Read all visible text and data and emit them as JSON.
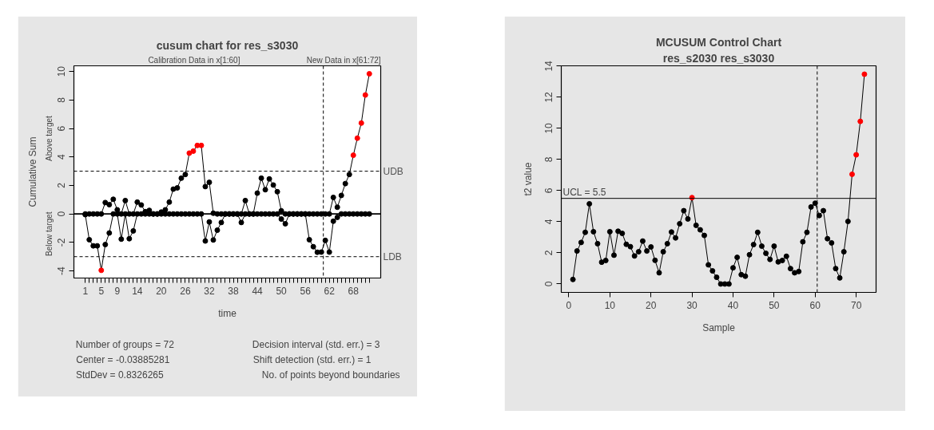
{
  "chart_data": [
    {
      "type": "line",
      "title": "cusum chart for res_s3030",
      "xlabel": "time",
      "ylabel": "Cumulative Sum",
      "marker": "circle",
      "line_style": "solid",
      "grid": false,
      "x": [
        1,
        2,
        3,
        4,
        5,
        6,
        7,
        8,
        9,
        10,
        11,
        12,
        13,
        14,
        15,
        16,
        17,
        18,
        19,
        20,
        21,
        22,
        23,
        24,
        25,
        26,
        27,
        28,
        29,
        30,
        31,
        32,
        33,
        34,
        35,
        36,
        37,
        38,
        39,
        40,
        41,
        42,
        43,
        44,
        45,
        46,
        47,
        48,
        49,
        50,
        51,
        52,
        53,
        54,
        55,
        56,
        57,
        58,
        59,
        60,
        61,
        62,
        63,
        64,
        65,
        66,
        67,
        68,
        69,
        70,
        71,
        72
      ],
      "xlim": [
        -1.84,
        74.84
      ],
      "ylim": [
        -4.5,
        10.4
      ],
      "xticks": [
        1,
        {
          "value": 2,
          "label": null
        },
        {
          "value": 3,
          "label": null
        },
        {
          "value": 4,
          "label": null
        },
        5,
        {
          "value": 6,
          "label": null
        },
        {
          "value": 7,
          "label": null
        },
        {
          "value": 8,
          "label": null
        },
        9,
        {
          "value": 10,
          "label": null
        },
        {
          "value": 11,
          "label": null
        },
        {
          "value": 12,
          "label": null
        },
        {
          "value": 13,
          "label": null
        },
        14,
        {
          "value": 15,
          "label": null
        },
        {
          "value": 16,
          "label": null
        },
        {
          "value": 17,
          "label": null
        },
        {
          "value": 18,
          "label": null
        },
        {
          "value": 19,
          "label": null
        },
        20,
        {
          "value": 21,
          "label": null
        },
        {
          "value": 22,
          "label": null
        },
        {
          "value": 23,
          "label": null
        },
        {
          "value": 24,
          "label": null
        },
        {
          "value": 25,
          "label": null
        },
        26,
        {
          "value": 27,
          "label": null
        },
        {
          "value": 28,
          "label": null
        },
        {
          "value": 29,
          "label": null
        },
        {
          "value": 30,
          "label": null
        },
        {
          "value": 31,
          "label": null
        },
        32,
        {
          "value": 33,
          "label": null
        },
        {
          "value": 34,
          "label": null
        },
        {
          "value": 35,
          "label": null
        },
        {
          "value": 36,
          "label": null
        },
        {
          "value": 37,
          "label": null
        },
        38,
        {
          "value": 39,
          "label": null
        },
        {
          "value": 40,
          "label": null
        },
        {
          "value": 41,
          "label": null
        },
        {
          "value": 42,
          "label": null
        },
        {
          "value": 43,
          "label": null
        },
        44,
        {
          "value": 45,
          "label": null
        },
        {
          "value": 46,
          "label": null
        },
        {
          "value": 47,
          "label": null
        },
        {
          "value": 48,
          "label": null
        },
        {
          "value": 49,
          "label": null
        },
        50,
        {
          "value": 51,
          "label": null
        },
        {
          "value": 52,
          "label": null
        },
        {
          "value": 53,
          "label": null
        },
        {
          "value": 54,
          "label": null
        },
        {
          "value": 55,
          "label": null
        },
        56,
        {
          "value": 57,
          "label": null
        },
        {
          "value": 58,
          "label": null
        },
        {
          "value": 59,
          "label": null
        },
        {
          "value": 60,
          "label": null
        },
        {
          "value": 61,
          "label": null
        },
        62,
        {
          "value": 63,
          "label": null
        },
        {
          "value": 64,
          "label": null
        },
        {
          "value": 65,
          "label": null
        },
        {
          "value": 66,
          "label": null
        },
        {
          "value": 67,
          "label": null
        },
        68,
        {
          "value": 69,
          "label": null
        },
        {
          "value": 70,
          "label": null
        },
        {
          "value": 71,
          "label": null
        },
        {
          "value": 72,
          "label": null
        }
      ],
      "yticks": [
        -4,
        -2,
        0,
        2,
        4,
        6,
        8,
        10
      ],
      "series": [
        {
          "color": "#000000",
          "values": [
            0,
            0,
            0,
            0,
            0,
            0.8,
            0.65,
            1.03,
            0.29,
            0,
            0.94,
            0,
            0,
            0.83,
            0.63,
            0.16,
            0.25,
            0,
            0,
            0.13,
            0.29,
            0.83,
            1.74,
            1.83,
            2.51,
            2.77,
            4.27,
            4.41,
            4.81,
            4.81,
            1.92,
            2.22,
            0.05,
            0,
            0,
            0,
            0,
            0,
            0,
            0,
            0.94,
            0,
            0,
            1.46,
            2.51,
            1.7,
            2.46,
            2.03,
            1.56,
            0.22,
            0,
            0,
            0,
            0,
            0,
            0,
            0,
            0,
            0,
            0,
            0,
            0,
            1.16,
            0.47,
            1.3,
            2.13,
            2.77,
            4.12,
            5.32,
            6.38,
            8.35,
            9.84
          ],
          "colors": [
            "#000000",
            "#000000",
            "#000000",
            "#000000",
            "#000000",
            "#000000",
            "#000000",
            "#000000",
            "#000000",
            "#000000",
            "#000000",
            "#000000",
            "#000000",
            "#000000",
            "#000000",
            "#000000",
            "#000000",
            "#000000",
            "#000000",
            "#000000",
            "#000000",
            "#000000",
            "#000000",
            "#000000",
            "#000000",
            "#000000",
            "#ff0000",
            "#ff0000",
            "#ff0000",
            "#ff0000",
            "#000000",
            "#000000",
            "#000000",
            "#000000",
            "#000000",
            "#000000",
            "#000000",
            "#000000",
            "#000000",
            "#000000",
            "#000000",
            "#000000",
            "#000000",
            "#000000",
            "#000000",
            "#000000",
            "#000000",
            "#000000",
            "#000000",
            "#000000",
            "#000000",
            "#000000",
            "#000000",
            "#000000",
            "#000000",
            "#000000",
            "#000000",
            "#000000",
            "#000000",
            "#000000",
            "#000000",
            "#000000",
            "#000000",
            "#000000",
            "#000000",
            "#000000",
            "#000000",
            "#ff0000",
            "#ff0000",
            "#ff0000",
            "#ff0000",
            "#ff0000"
          ]
        },
        {
          "color": "#000000",
          "values": [
            -0.05,
            -1.81,
            -2.24,
            -2.24,
            -3.96,
            -2.15,
            -1.34,
            0,
            0,
            -1.77,
            0,
            -1.74,
            -1.19,
            0,
            0,
            0,
            0,
            0,
            0,
            0,
            0,
            0,
            0,
            0,
            0,
            0,
            0,
            0,
            0,
            0,
            -1.9,
            -0.56,
            -1.83,
            -1.14,
            -0.6,
            0,
            0,
            0,
            0,
            -0.6,
            0,
            0,
            0,
            0,
            0,
            0,
            0,
            0,
            0,
            -0.36,
            -0.69,
            0,
            0,
            0,
            0,
            0,
            -1.81,
            -2.3,
            -2.69,
            -2.68,
            -1.86,
            -2.68,
            -0.51,
            -0.24,
            0,
            0,
            0,
            0,
            0,
            0,
            0,
            0
          ],
          "colors": [
            "#000000",
            "#000000",
            "#000000",
            "#000000",
            "#ff0000",
            "#000000",
            "#000000",
            "#000000",
            "#000000",
            "#000000",
            "#000000",
            "#000000",
            "#000000",
            "#000000",
            "#000000",
            "#000000",
            "#000000",
            "#000000",
            "#000000",
            "#000000",
            "#000000",
            "#000000",
            "#000000",
            "#000000",
            "#000000",
            "#000000",
            "#000000",
            "#000000",
            "#000000",
            "#000000",
            "#000000",
            "#000000",
            "#000000",
            "#000000",
            "#000000",
            "#000000",
            "#000000",
            "#000000",
            "#000000",
            "#000000",
            "#000000",
            "#000000",
            "#000000",
            "#000000",
            "#000000",
            "#000000",
            "#000000",
            "#000000",
            "#000000",
            "#000000",
            "#000000",
            "#000000",
            "#000000",
            "#000000",
            "#000000",
            "#000000",
            "#000000",
            "#000000",
            "#000000",
            "#000000",
            "#000000",
            "#000000",
            "#000000",
            "#000000",
            "#000000",
            "#000000",
            "#000000",
            "#000000",
            "#000000",
            "#000000",
            "#000000",
            "#000000"
          ]
        }
      ],
      "ref_lines": [
        {
          "axis": "y",
          "value": 3,
          "label": "UDB",
          "line_style": "dashed",
          "color": "#000000"
        },
        {
          "axis": "y",
          "value": -3,
          "label": "LDB",
          "line_style": "dashed",
          "color": "#000000"
        },
        {
          "axis": "y",
          "value": 0,
          "line_style": "solid",
          "color": "#000000"
        },
        {
          "axis": "x",
          "value": 60.5,
          "line_style": "dashed",
          "color": "#000000"
        }
      ],
      "annotations": [
        "Calibration Data in x[1:60]",
        "New Data in x[61:72]",
        "Above target",
        "Below target",
        "Number of groups = 72",
        "Center = -0.03885281",
        "StdDev = 0.8326265",
        "Decision interval (std. err.) = 3",
        "Shift detection (std. err.) = 1",
        "No. of points beyond boundaries"
      ]
    },
    {
      "type": "line",
      "title": "MCUSUM Control Chart",
      "subtitle": "res_s2030 res_s3030",
      "xlabel": "Sample",
      "ylabel": "t2 value",
      "marker": "circle",
      "line_style": "solid",
      "grid": false,
      "x": [
        1,
        2,
        3,
        4,
        5,
        6,
        7,
        8,
        9,
        10,
        11,
        12,
        13,
        14,
        15,
        16,
        17,
        18,
        19,
        20,
        21,
        22,
        23,
        24,
        25,
        26,
        27,
        28,
        29,
        30,
        31,
        32,
        33,
        34,
        35,
        36,
        37,
        38,
        39,
        40,
        41,
        42,
        43,
        44,
        45,
        46,
        47,
        48,
        49,
        50,
        51,
        52,
        53,
        54,
        55,
        56,
        57,
        58,
        59,
        60,
        61,
        62,
        63,
        64,
        65,
        66,
        67,
        68,
        69,
        70,
        71,
        72
      ],
      "xlim": [
        -1.84,
        74.84
      ],
      "ylim": [
        -0.54,
        14.02
      ],
      "xticks": [
        0,
        10,
        20,
        30,
        40,
        50,
        60,
        70
      ],
      "yticks": [
        0,
        2,
        4,
        6,
        8,
        10,
        12,
        14
      ],
      "series": [
        {
          "color": "#000000",
          "values": [
            0.29,
            2.12,
            2.67,
            3.32,
            5.15,
            3.36,
            2.59,
            1.4,
            1.51,
            3.36,
            1.85,
            3.39,
            3.25,
            2.55,
            2.4,
            1.8,
            2.07,
            2.76,
            2.12,
            2.38,
            1.52,
            0.72,
            2.07,
            2.59,
            3.34,
            2.96,
            3.87,
            4.71,
            4.18,
            5.55,
            3.77,
            3.48,
            3.12,
            1.23,
            0.84,
            0.43,
            0,
            0,
            0,
            1.04,
            1.71,
            0.6,
            0.5,
            1.88,
            2.53,
            3.32,
            2.43,
            1.97,
            1.58,
            2.43,
            1.42,
            1.51,
            1.78,
            0.99,
            0.72,
            0.8,
            2.71,
            3.32,
            4.95,
            5.19,
            4.4,
            4.71,
            2.91,
            2.64,
            0.99,
            0.39,
            2.07,
            4.02,
            7.05,
            8.3,
            10.45,
            13.48
          ],
          "colors": [
            "#000000",
            "#000000",
            "#000000",
            "#000000",
            "#000000",
            "#000000",
            "#000000",
            "#000000",
            "#000000",
            "#000000",
            "#000000",
            "#000000",
            "#000000",
            "#000000",
            "#000000",
            "#000000",
            "#000000",
            "#000000",
            "#000000",
            "#000000",
            "#000000",
            "#000000",
            "#000000",
            "#000000",
            "#000000",
            "#000000",
            "#000000",
            "#000000",
            "#000000",
            "#ff0000",
            "#000000",
            "#000000",
            "#000000",
            "#000000",
            "#000000",
            "#000000",
            "#000000",
            "#000000",
            "#000000",
            "#000000",
            "#000000",
            "#000000",
            "#000000",
            "#000000",
            "#000000",
            "#000000",
            "#000000",
            "#000000",
            "#000000",
            "#000000",
            "#000000",
            "#000000",
            "#000000",
            "#000000",
            "#000000",
            "#000000",
            "#000000",
            "#000000",
            "#000000",
            "#000000",
            "#000000",
            "#000000",
            "#000000",
            "#000000",
            "#000000",
            "#000000",
            "#000000",
            "#000000",
            "#ff0000",
            "#ff0000",
            "#ff0000",
            "#ff0000"
          ]
        }
      ],
      "ref_lines": [
        {
          "axis": "y",
          "value": 5.5,
          "label": "UCL = 5.5",
          "line_style": "solid",
          "color": "#000000"
        },
        {
          "axis": "x",
          "value": 60.5,
          "line_style": "dashed",
          "color": "#000000"
        }
      ]
    }
  ]
}
